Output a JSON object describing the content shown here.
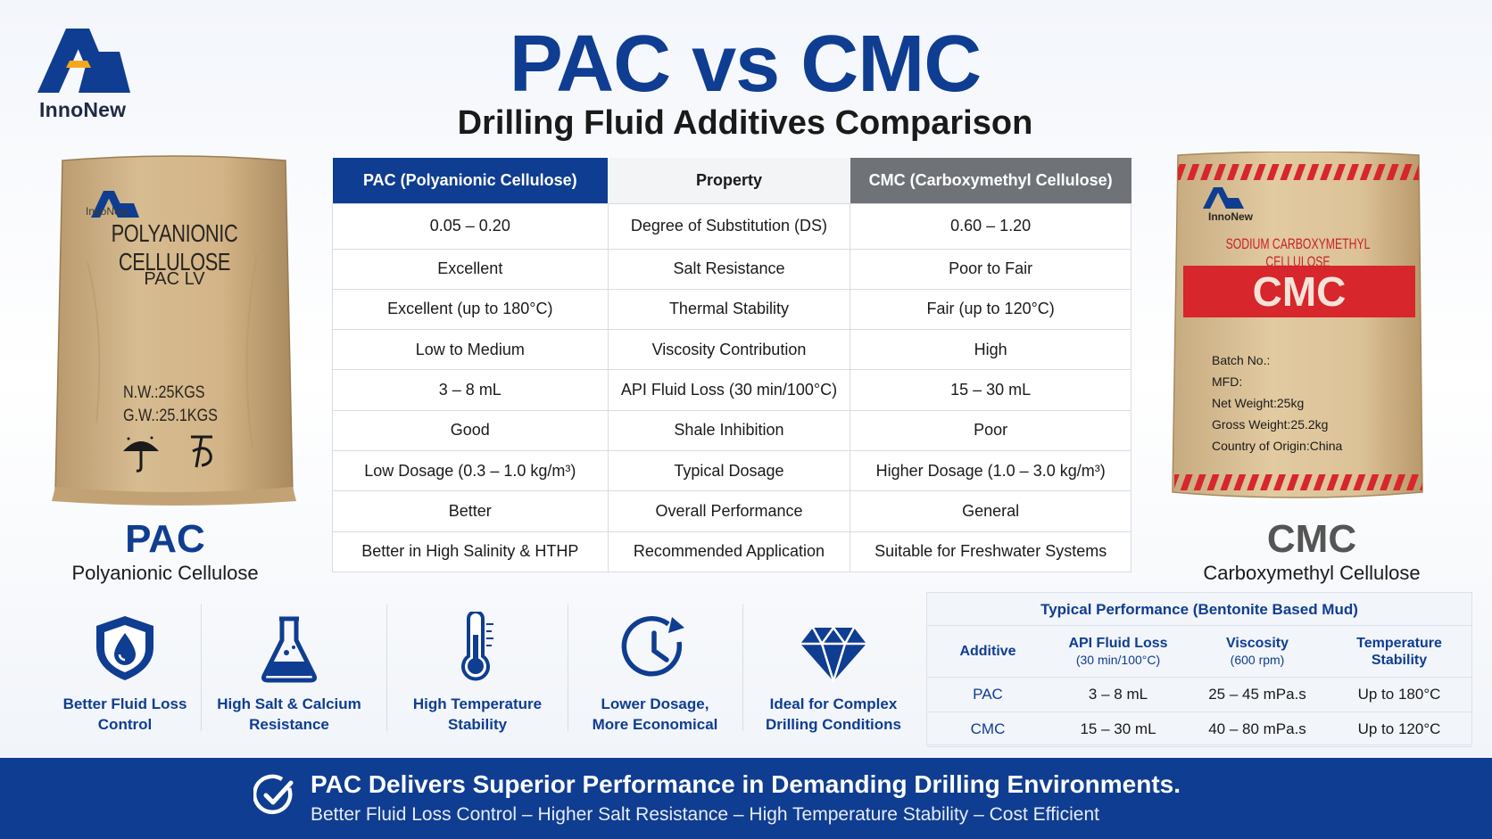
{
  "brand": {
    "name": "InnoNew"
  },
  "header": {
    "title": "PAC vs CMC",
    "subtitle": "Drilling Fluid Additives Comparison"
  },
  "pac_bag": {
    "brand": "InnoNew",
    "line1": "POLYANIONIC CELLULOSE",
    "line2": "PAC LV",
    "nw": "N.W.:25KGS",
    "gw": "G.W.:25.1KGS"
  },
  "cmc_bag": {
    "brand": "InnoNew",
    "line1": "SODIUM CARBOXYMETHYL CELLULOSE",
    "band": "CMC",
    "batch": "Batch No.:",
    "mfd": "MFD:",
    "net": "Net Weight:25kg",
    "gross": "Gross Weight:25.2kg",
    "origin": "Country of Origin:China"
  },
  "products": {
    "pac": {
      "name": "PAC",
      "full": "Polyanionic Cellulose"
    },
    "cmc": {
      "name": "CMC",
      "full": "Carboxymethyl Cellulose"
    }
  },
  "comparison": {
    "headers": {
      "pac": "PAC (Polyanionic Cellulose)",
      "property": "Property",
      "cmc": "CMC (Carboxymethyl Cellulose)"
    },
    "rows": [
      {
        "pac": "0.05 – 0.20",
        "property": "Degree of Substitution (DS)",
        "cmc": "0.60 – 1.20"
      },
      {
        "pac": "Excellent",
        "property": "Salt Resistance",
        "cmc": "Poor to Fair"
      },
      {
        "pac": "Excellent (up to 180°C)",
        "property": "Thermal Stability",
        "cmc": "Fair (up to 120°C)"
      },
      {
        "pac": "Low to Medium",
        "property": "Viscosity Contribution",
        "cmc": "High"
      },
      {
        "pac": "3 – 8 mL",
        "property": "API Fluid Loss (30 min/100°C)",
        "cmc": "15 – 30 mL"
      },
      {
        "pac": "Good",
        "property": "Shale Inhibition",
        "cmc": "Poor"
      },
      {
        "pac": "Low Dosage (0.3 – 1.0 kg/m³)",
        "property": "Typical Dosage",
        "cmc": "Higher Dosage (1.0 – 3.0 kg/m³)"
      },
      {
        "pac": "Better",
        "property": "Overall Performance",
        "cmc": "General"
      },
      {
        "pac": "Better in High Salinity & HTHP",
        "property": "Recommended Application",
        "cmc": "Suitable for Freshwater Systems"
      }
    ]
  },
  "features": [
    {
      "icon": "shield-drop-icon",
      "line1": "Better Fluid Loss",
      "line2": "Control"
    },
    {
      "icon": "flask-icon",
      "line1": "High Salt & Calcium",
      "line2": "Resistance"
    },
    {
      "icon": "thermometer-icon",
      "line1": "High Temperature",
      "line2": "Stability"
    },
    {
      "icon": "clock-arrow-icon",
      "line1": "Lower Dosage,",
      "line2": "More Economical"
    },
    {
      "icon": "diamond-icon",
      "line1": "Ideal for Complex",
      "line2": "Drilling Conditions"
    }
  ],
  "performance": {
    "title": "Typical Performance (Bentonite Based Mud)",
    "headers": {
      "additive": "Additive",
      "fluid_loss": "API Fluid Loss",
      "fluid_loss_unit": "(30 min/100°C)",
      "viscosity": "Viscosity",
      "viscosity_unit": "(600 rpm)",
      "temp1": "Temperature",
      "temp2": "Stability"
    },
    "rows": [
      {
        "additive": "PAC",
        "fluid_loss": "3 – 8 mL",
        "viscosity": "25 – 45 mPa.s",
        "temp": "Up to 180°C"
      },
      {
        "additive": "CMC",
        "fluid_loss": "15 – 30 mL",
        "viscosity": "40 – 80 mPa.s",
        "temp": "Up to 120°C"
      }
    ]
  },
  "banner": {
    "headline": "PAC Delivers Superior Performance in Demanding Drilling Environments.",
    "tagline": "Better Fluid Loss Control – Higher Salt Resistance – High Temperature Stability – Cost Efficient"
  },
  "colors": {
    "primary_blue": "#0f3d91",
    "cmc_gray": "#6f7378",
    "cmc_red": "#d7262c",
    "kraft": "#d2b48c"
  }
}
